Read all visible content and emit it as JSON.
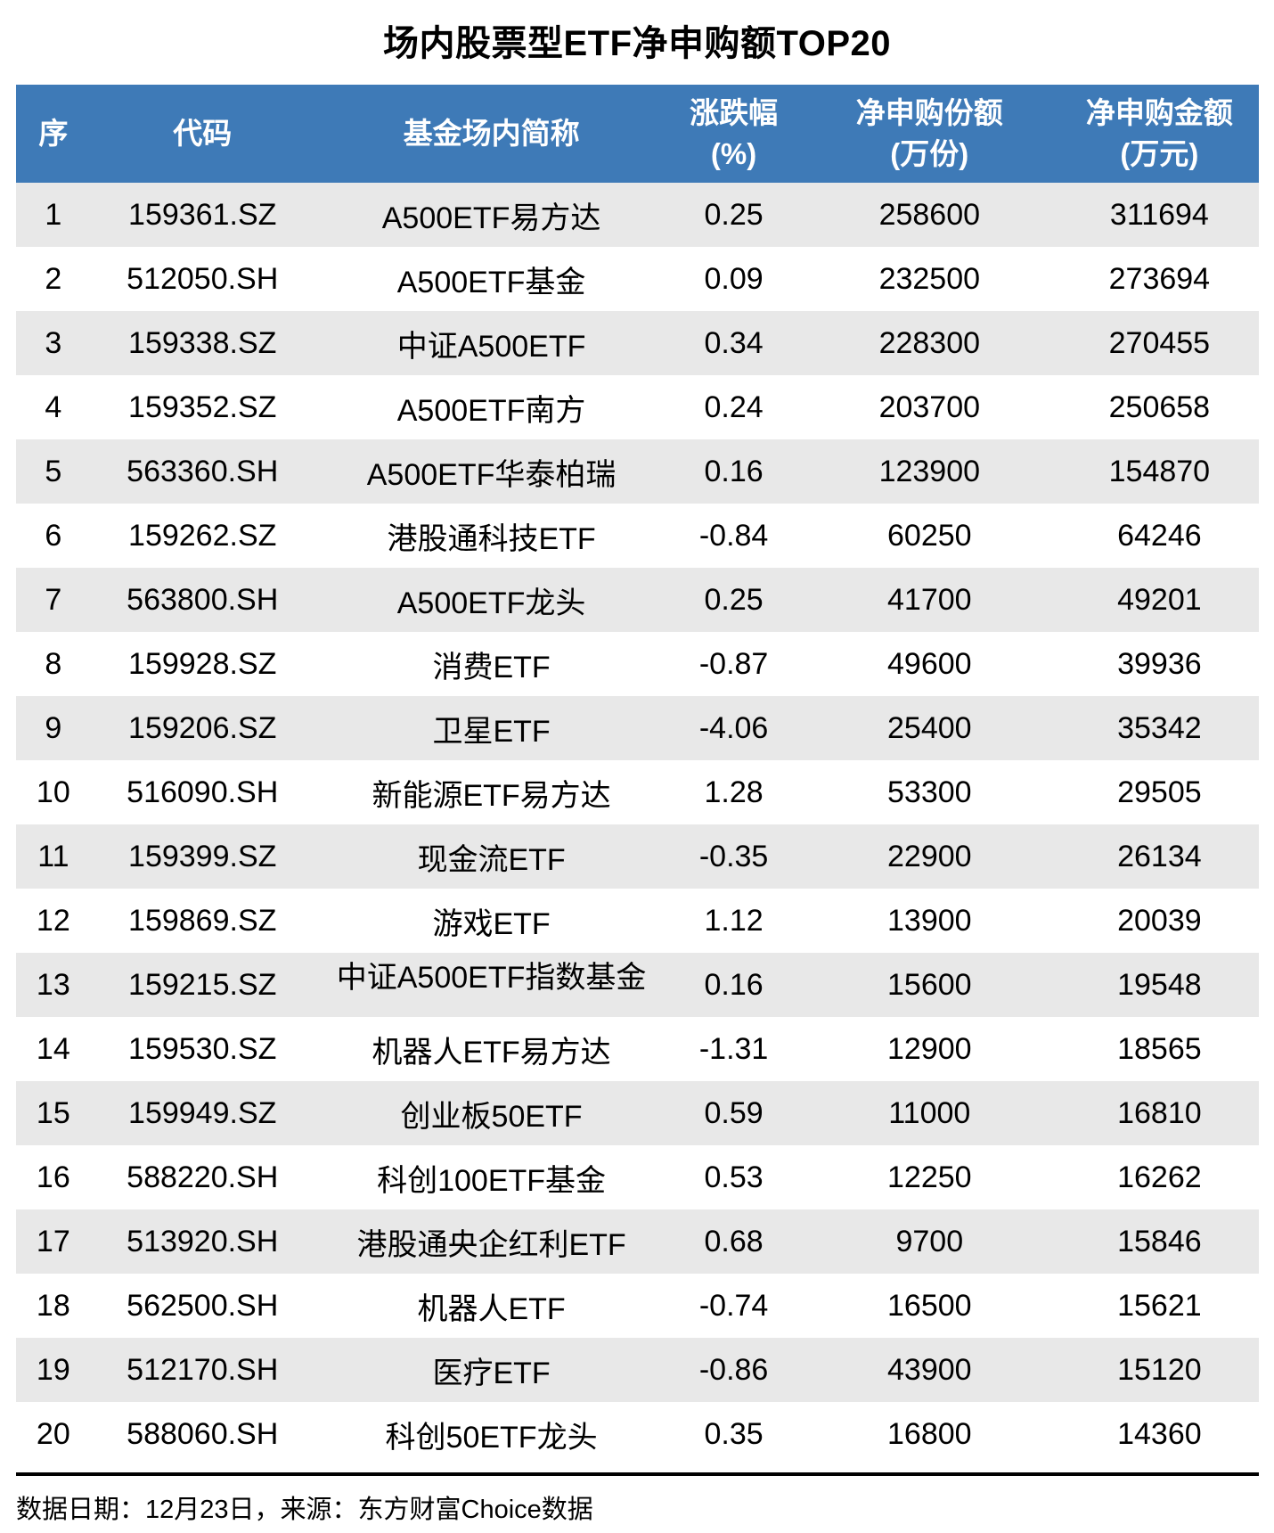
{
  "chart_data": {
    "type": "table",
    "title": "场内股票型ETF净申购额TOP20",
    "columns": [
      {
        "label": "序",
        "sub": ""
      },
      {
        "label": "代码",
        "sub": ""
      },
      {
        "label": "基金场内简称",
        "sub": ""
      },
      {
        "label": "涨跌幅",
        "sub": "(%)"
      },
      {
        "label": "净申购份额",
        "sub": "(万份)"
      },
      {
        "label": "净申购金额",
        "sub": "(万元)"
      }
    ],
    "rows": [
      {
        "rank": "1",
        "code": "159361.SZ",
        "name": "A500ETF易方达",
        "change": "0.25",
        "shares": "258600",
        "amount": "311694"
      },
      {
        "rank": "2",
        "code": "512050.SH",
        "name": "A500ETF基金",
        "change": "0.09",
        "shares": "232500",
        "amount": "273694"
      },
      {
        "rank": "3",
        "code": "159338.SZ",
        "name": "中证A500ETF",
        "change": "0.34",
        "shares": "228300",
        "amount": "270455"
      },
      {
        "rank": "4",
        "code": "159352.SZ",
        "name": "A500ETF南方",
        "change": "0.24",
        "shares": "203700",
        "amount": "250658"
      },
      {
        "rank": "5",
        "code": "563360.SH",
        "name": "A500ETF华泰柏瑞",
        "change": "0.16",
        "shares": "123900",
        "amount": "154870"
      },
      {
        "rank": "6",
        "code": "159262.SZ",
        "name": "港股通科技ETF",
        "change": "-0.84",
        "shares": "60250",
        "amount": "64246"
      },
      {
        "rank": "7",
        "code": "563800.SH",
        "name": "A500ETF龙头",
        "change": "0.25",
        "shares": "41700",
        "amount": "49201"
      },
      {
        "rank": "8",
        "code": "159928.SZ",
        "name": "消费ETF",
        "change": "-0.87",
        "shares": "49600",
        "amount": "39936"
      },
      {
        "rank": "9",
        "code": "159206.SZ",
        "name": "卫星ETF",
        "change": "-4.06",
        "shares": "25400",
        "amount": "35342"
      },
      {
        "rank": "10",
        "code": "516090.SH",
        "name": "新能源ETF易方达",
        "change": "1.28",
        "shares": "53300",
        "amount": "29505"
      },
      {
        "rank": "11",
        "code": "159399.SZ",
        "name": "现金流ETF",
        "change": "-0.35",
        "shares": "22900",
        "amount": "26134"
      },
      {
        "rank": "12",
        "code": "159869.SZ",
        "name": "游戏ETF",
        "change": "1.12",
        "shares": "13900",
        "amount": "20039"
      },
      {
        "rank": "13",
        "code": "159215.SZ",
        "name": "中证A500ETF指数基金",
        "change": "0.16",
        "shares": "15600",
        "amount": "19548",
        "clip": true
      },
      {
        "rank": "14",
        "code": "159530.SZ",
        "name": "机器人ETF易方达",
        "change": "-1.31",
        "shares": "12900",
        "amount": "18565"
      },
      {
        "rank": "15",
        "code": "159949.SZ",
        "name": "创业板50ETF",
        "change": "0.59",
        "shares": "11000",
        "amount": "16810"
      },
      {
        "rank": "16",
        "code": "588220.SH",
        "name": "科创100ETF基金",
        "change": "0.53",
        "shares": "12250",
        "amount": "16262"
      },
      {
        "rank": "17",
        "code": "513920.SH",
        "name": "港股通央企红利ETF",
        "change": "0.68",
        "shares": "9700",
        "amount": "15846"
      },
      {
        "rank": "18",
        "code": "562500.SH",
        "name": "机器人ETF",
        "change": "-0.74",
        "shares": "16500",
        "amount": "15621"
      },
      {
        "rank": "19",
        "code": "512170.SH",
        "name": "医疗ETF",
        "change": "-0.86",
        "shares": "43900",
        "amount": "15120"
      },
      {
        "rank": "20",
        "code": "588060.SH",
        "name": "科创50ETF龙头",
        "change": "0.35",
        "shares": "16800",
        "amount": "14360"
      }
    ]
  },
  "footer": {
    "text": "数据日期：12月23日，来源：东方财富Choice数据"
  },
  "colors": {
    "header_bg": "#3E7AB7",
    "alt_row_bg": "#E8E8E8",
    "row_bg": "#FFFFFF",
    "header_text": "#FFFFFF",
    "text": "#000000"
  }
}
